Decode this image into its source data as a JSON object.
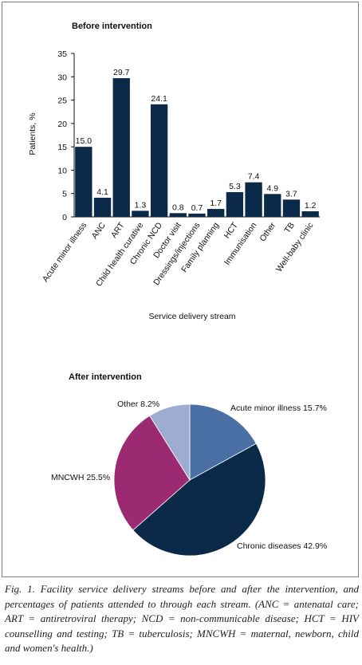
{
  "chart_data": [
    {
      "type": "bar",
      "title": "Before intervention",
      "categories": [
        "Acute minor illness",
        "ANC",
        "ART",
        "Child health curative",
        "Chronic NCD",
        "Doctor visit",
        "Dressings/injections",
        "Family planning",
        "HCT",
        "Immunisation",
        "Other",
        "TB",
        "Well-baby clinic"
      ],
      "values": [
        15.0,
        4.1,
        29.7,
        1.3,
        24.1,
        0.8,
        0.7,
        1.7,
        5.3,
        7.4,
        4.9,
        3.7,
        1.2
      ],
      "value_labels": [
        "15.0",
        "4.1",
        "29.7",
        "1.3",
        "24.1",
        "0.8",
        "0.7",
        "1.7",
        "5.3",
        "7.4",
        "4.9",
        "3.7",
        "1.2"
      ],
      "xlabel": "Service delivery stream",
      "ylabel": "Patients, %",
      "ylim": [
        0,
        35
      ],
      "yticks": [
        "0",
        "5",
        "10",
        "15",
        "20",
        "25",
        "30",
        "35"
      ],
      "grid": false,
      "bar_color": "#0b2a4a"
    },
    {
      "type": "pie",
      "title": "After intervention",
      "slices": [
        {
          "label": "Acute minor illness 15.7%",
          "value": 15.7,
          "color": "#4a6fa5"
        },
        {
          "label": "Chronic diseases 42.9%",
          "value": 42.9,
          "color": "#0b2a4a"
        },
        {
          "label": "MNCWH 25.5%",
          "value": 25.5,
          "color": "#9b2a72"
        },
        {
          "label": "Other 8.2%",
          "value": 8.2,
          "color": "#9eacd1"
        }
      ]
    }
  ],
  "caption": "Fig. 1. Facility service delivery streams before and after the intervention, and percentages of patients attended to through each stream. (ANC = antenatal care; ART = antiretroviral therapy; NCD = non-communicable disease; HCT = HIV counselling and testing; TB = tuberculosis; MNCWH = maternal, newborn, child and women's health.)"
}
